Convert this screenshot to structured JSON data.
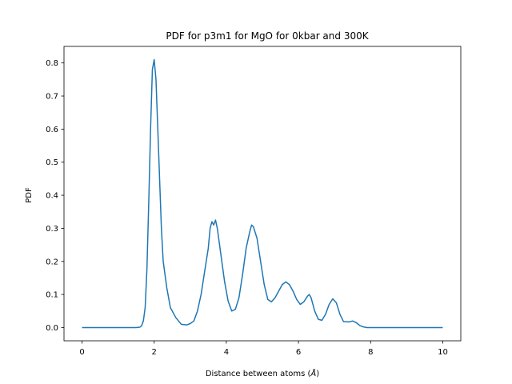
{
  "chart_data": {
    "type": "line",
    "title": "PDF for p3m1 for MgO for 0kbar and 300K",
    "xlabel": "Distance between atoms (",
    "xlabel_unit": "Å",
    "xlabel_close": ")",
    "ylabel": "PDF",
    "xlim": [
      -0.5,
      10.5
    ],
    "ylim": [
      -0.04,
      0.85
    ],
    "xticks": [
      0,
      2,
      4,
      6,
      8,
      10
    ],
    "xtick_labels": [
      "0",
      "2",
      "4",
      "6",
      "8",
      "10"
    ],
    "yticks": [
      0.0,
      0.1,
      0.2,
      0.3,
      0.4,
      0.5,
      0.6,
      0.7,
      0.8
    ],
    "ytick_labels": [
      "0.0",
      "0.1",
      "0.2",
      "0.3",
      "0.4",
      "0.5",
      "0.6",
      "0.7",
      "0.8"
    ],
    "grid": false,
    "series": [
      {
        "color": "#1f77b4",
        "points": [
          [
            0,
            0.0
          ],
          [
            0.5,
            0.0
          ],
          [
            1.0,
            0.0
          ],
          [
            1.5,
            0.0
          ],
          [
            1.6,
            0.001
          ],
          [
            1.65,
            0.005
          ],
          [
            1.7,
            0.02
          ],
          [
            1.75,
            0.06
          ],
          [
            1.8,
            0.18
          ],
          [
            1.85,
            0.38
          ],
          [
            1.9,
            0.6
          ],
          [
            1.95,
            0.78
          ],
          [
            2.0,
            0.81
          ],
          [
            2.05,
            0.75
          ],
          [
            2.1,
            0.6
          ],
          [
            2.15,
            0.45
          ],
          [
            2.2,
            0.3
          ],
          [
            2.25,
            0.2
          ],
          [
            2.35,
            0.12
          ],
          [
            2.45,
            0.06
          ],
          [
            2.6,
            0.03
          ],
          [
            2.75,
            0.01
          ],
          [
            2.9,
            0.008
          ],
          [
            3.0,
            0.012
          ],
          [
            3.1,
            0.02
          ],
          [
            3.2,
            0.05
          ],
          [
            3.3,
            0.1
          ],
          [
            3.4,
            0.17
          ],
          [
            3.5,
            0.24
          ],
          [
            3.55,
            0.3
          ],
          [
            3.6,
            0.32
          ],
          [
            3.65,
            0.31
          ],
          [
            3.7,
            0.325
          ],
          [
            3.75,
            0.3
          ],
          [
            3.85,
            0.22
          ],
          [
            3.95,
            0.14
          ],
          [
            4.05,
            0.08
          ],
          [
            4.15,
            0.05
          ],
          [
            4.25,
            0.055
          ],
          [
            4.35,
            0.09
          ],
          [
            4.45,
            0.16
          ],
          [
            4.55,
            0.24
          ],
          [
            4.65,
            0.29
          ],
          [
            4.7,
            0.31
          ],
          [
            4.75,
            0.305
          ],
          [
            4.85,
            0.27
          ],
          [
            4.95,
            0.2
          ],
          [
            5.05,
            0.13
          ],
          [
            5.15,
            0.085
          ],
          [
            5.25,
            0.078
          ],
          [
            5.35,
            0.09
          ],
          [
            5.45,
            0.11
          ],
          [
            5.55,
            0.13
          ],
          [
            5.65,
            0.138
          ],
          [
            5.75,
            0.13
          ],
          [
            5.85,
            0.11
          ],
          [
            5.95,
            0.085
          ],
          [
            6.05,
            0.07
          ],
          [
            6.15,
            0.078
          ],
          [
            6.25,
            0.095
          ],
          [
            6.3,
            0.1
          ],
          [
            6.35,
            0.09
          ],
          [
            6.45,
            0.05
          ],
          [
            6.55,
            0.025
          ],
          [
            6.65,
            0.022
          ],
          [
            6.75,
            0.04
          ],
          [
            6.85,
            0.07
          ],
          [
            6.95,
            0.087
          ],
          [
            7.05,
            0.075
          ],
          [
            7.15,
            0.04
          ],
          [
            7.25,
            0.018
          ],
          [
            7.4,
            0.017
          ],
          [
            7.5,
            0.02
          ],
          [
            7.6,
            0.015
          ],
          [
            7.7,
            0.006
          ],
          [
            7.8,
            0.002
          ],
          [
            7.9,
            0.0
          ],
          [
            8.5,
            0.0
          ],
          [
            9.0,
            0.0
          ],
          [
            9.5,
            0.0
          ],
          [
            10.0,
            0.0
          ]
        ]
      }
    ]
  }
}
